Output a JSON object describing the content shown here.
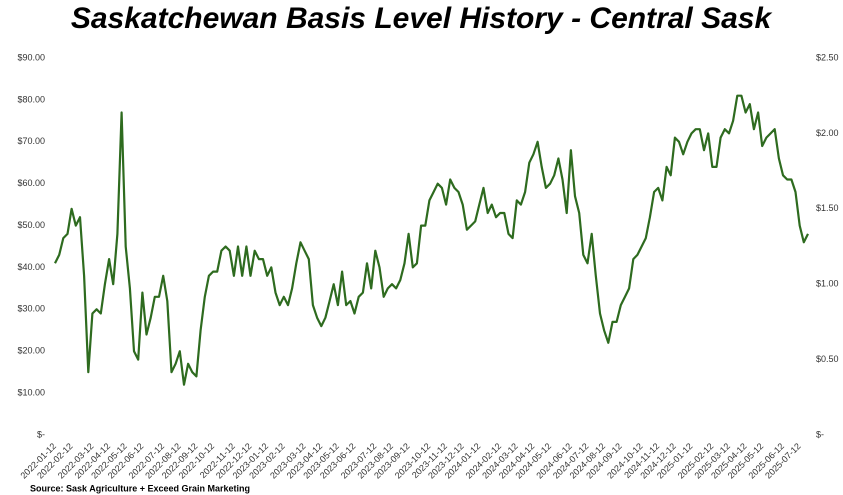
{
  "chart_data": {
    "type": "line",
    "title": "Saskatchewan Basis Level History - Central Sask",
    "source": "Source: Sask Agriculture + Exceed Grain Marketing",
    "color": "#2e6b1f",
    "grid": false,
    "categories": [
      "2022-01-12",
      null,
      null,
      null,
      "2022-02-12",
      null,
      null,
      null,
      null,
      "2022-03-12",
      null,
      null,
      null,
      "2022-04-12",
      null,
      null,
      null,
      "2022-05-12",
      null,
      null,
      null,
      "2022-06-12",
      null,
      null,
      null,
      null,
      "2022-07-12",
      null,
      null,
      null,
      "2022-08-12",
      null,
      null,
      null,
      "2022-09-12",
      null,
      null,
      null,
      "2022-10-12",
      null,
      null,
      null,
      null,
      "2022-11-12",
      null,
      null,
      null,
      "2022-12-12",
      null,
      null,
      null,
      "2023-01-12",
      null,
      null,
      null,
      "2023-02-12",
      null,
      null,
      null,
      null,
      "2023-03-12",
      null,
      null,
      null,
      "2023-04-12",
      null,
      null,
      null,
      "2023-05-12",
      null,
      null,
      null,
      "2023-06-12",
      null,
      null,
      null,
      null,
      "2023-07-12",
      null,
      null,
      null,
      "2023-08-12",
      null,
      null,
      null,
      "2023-09-12",
      null,
      null,
      null,
      null,
      "2023-10-12",
      null,
      null,
      null,
      "2023-11-12",
      null,
      null,
      null,
      "2023-12-12",
      null,
      null,
      null,
      "2024-01-12",
      null,
      null,
      null,
      null,
      "2024-02-12",
      null,
      null,
      null,
      "2024-03-12",
      null,
      null,
      null,
      "2024-04-12",
      null,
      null,
      null,
      "2024-05-12",
      null,
      null,
      null,
      null,
      "2024-06-12",
      null,
      null,
      null,
      "2024-07-12",
      null,
      null,
      null,
      "2024-08-12",
      null,
      null,
      null,
      "2024-09-12",
      null,
      null,
      null,
      null,
      "2024-10-12",
      null,
      null,
      null,
      "2024-11-12",
      null,
      null,
      null,
      "2024-12-12",
      null,
      null,
      null,
      "2025-01-12",
      null,
      null,
      null,
      null,
      "2025-02-12",
      null,
      null,
      null,
      "2025-03-12",
      null,
      null,
      null,
      "2025-04-12",
      null,
      null,
      null,
      "2025-05-12",
      null,
      null,
      null,
      null,
      "2025-06-12",
      null,
      null,
      null,
      "2025-07-12",
      null,
      null
    ],
    "values": [
      41,
      43,
      47,
      48,
      54,
      50,
      52,
      38,
      15,
      29,
      30,
      29,
      36,
      42,
      36,
      48,
      77,
      45,
      35,
      20,
      18,
      34,
      24,
      28,
      33,
      33,
      38,
      32,
      15,
      17,
      20,
      12,
      17,
      15,
      14,
      25,
      33,
      38,
      39,
      39,
      44,
      45,
      44,
      38,
      45,
      38,
      45,
      38,
      44,
      42,
      42,
      38,
      40,
      34,
      31,
      33,
      31,
      35,
      41,
      46,
      44,
      42,
      31,
      28,
      26,
      28,
      32,
      36,
      31,
      39,
      31,
      32,
      29,
      33,
      34,
      41,
      35,
      44,
      40,
      33,
      35,
      36,
      35,
      37,
      41,
      48,
      40,
      41,
      50,
      50,
      56,
      58,
      60,
      59,
      55,
      61,
      59,
      58,
      55,
      49,
      50,
      51,
      55,
      59,
      53,
      55,
      52,
      53,
      53,
      48,
      47,
      56,
      55,
      58,
      65,
      67,
      70,
      64,
      59,
      60,
      62,
      66,
      61,
      53,
      68,
      57,
      53,
      43,
      41,
      48,
      38,
      29,
      25,
      22,
      27,
      27,
      31,
      33,
      35,
      42,
      43,
      45,
      47,
      52,
      58,
      59,
      56,
      64,
      62,
      71,
      70,
      67,
      70,
      72,
      73,
      73,
      68,
      72,
      64,
      64,
      71,
      73,
      72,
      75,
      81,
      81,
      77,
      79,
      73,
      77,
      69,
      71,
      72,
      73,
      66,
      62,
      61,
      61,
      58,
      50,
      46,
      48
    ],
    "ylim": [
      0,
      90
    ],
    "yticks": [
      {
        "value": 0,
        "label": "$-"
      },
      {
        "value": 10,
        "label": "$10.00"
      },
      {
        "value": 20,
        "label": "$20.00"
      },
      {
        "value": 30,
        "label": "$30.00"
      },
      {
        "value": 40,
        "label": "$40.00"
      },
      {
        "value": 50,
        "label": "$50.00"
      },
      {
        "value": 60,
        "label": "$60.00"
      },
      {
        "value": 70,
        "label": "$70.00"
      },
      {
        "value": 80,
        "label": "$80.00"
      },
      {
        "value": 90,
        "label": "$90.00"
      }
    ],
    "y2lim": [
      0,
      2.5
    ],
    "y2ticks": [
      {
        "value": 0,
        "label": "$-"
      },
      {
        "value": 0.5,
        "label": "$0.50"
      },
      {
        "value": 1,
        "label": "$1.00"
      },
      {
        "value": 1.5,
        "label": "$1.50"
      },
      {
        "value": 2,
        "label": "$2.00"
      },
      {
        "value": 2.5,
        "label": "$2.50"
      }
    ]
  }
}
